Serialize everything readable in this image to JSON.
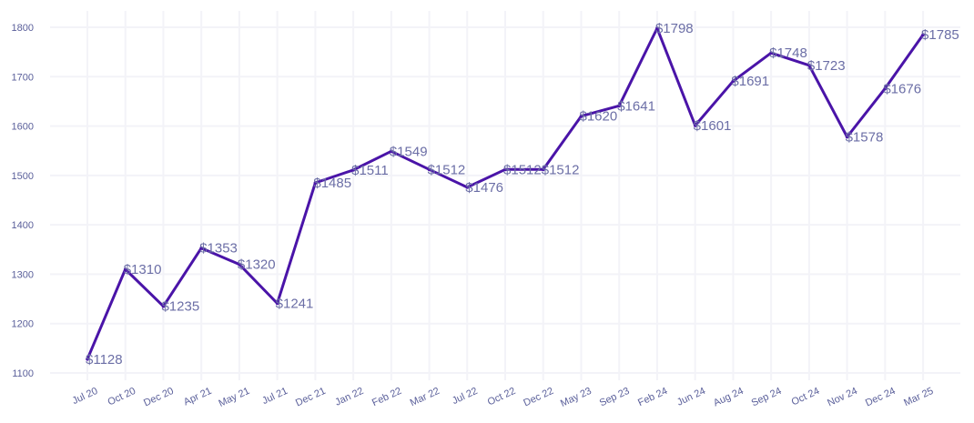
{
  "chart_data": {
    "type": "line",
    "title": "",
    "xlabel": "",
    "ylabel": "",
    "categories": [
      "Jul 20",
      "Oct 20",
      "Dec 20",
      "Apr 21",
      "May 21",
      "Jul 21",
      "Dec 21",
      "Jan 22",
      "Feb 22",
      "Mar 22",
      "Jul 22",
      "Oct 22",
      "Dec 22",
      "May 23",
      "Sep 23",
      "Feb 24",
      "Jun 24",
      "Aug 24",
      "Sep 24",
      "Oct 24",
      "Nov 24",
      "Dec 24",
      "Mar 25"
    ],
    "values": [
      1128,
      1310,
      1235,
      1353,
      1320,
      1241,
      1485,
      1511,
      1549,
      1512,
      1476,
      1512,
      1512,
      1620,
      1641,
      1798,
      1601,
      1691,
      1748,
      1723,
      1578,
      1676,
      1785
    ],
    "data_labels": [
      "$1128",
      "$1310",
      "$1235",
      "$1353",
      "$1320",
      "$1241",
      "$1485",
      "$1511",
      "$1549",
      "$1512",
      "$1476",
      "$1512",
      "$1512",
      "$1620",
      "$1641",
      "$1798",
      "$1601",
      "$1691",
      "$1748",
      "$1723",
      "$1578",
      "$1676",
      "$1785"
    ],
    "yticks": [
      1100,
      1200,
      1300,
      1400,
      1500,
      1600,
      1700,
      1800
    ],
    "ylim": [
      1090,
      1830
    ],
    "grid": true,
    "colors": {
      "line": "#4a14a8",
      "label": "#6b6ea6",
      "tick": "#5a5f9a",
      "grid": "#f3f3f8"
    }
  }
}
